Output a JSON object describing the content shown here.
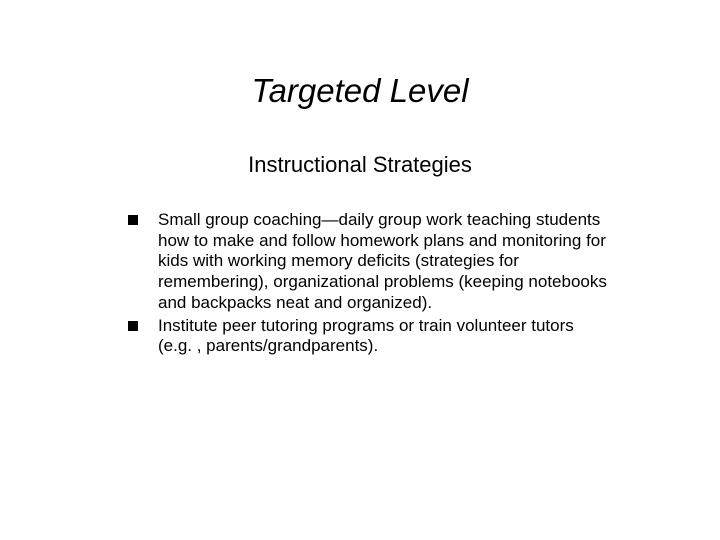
{
  "slide": {
    "title": "Targeted Level",
    "subtitle": "Instructional Strategies",
    "bullets": [
      "Small group coaching—daily group work teaching students how to make and follow homework plans and monitoring for kids with working memory deficits (strategies for remembering), organizational problems (keeping notebooks and backpacks neat and organized).",
      "Institute peer tutoring programs or train volunteer tutors (e.g. , parents/grandparents)."
    ]
  },
  "style": {
    "background_color": "#ffffff",
    "text_color": "#000000",
    "title_fontsize": 33,
    "title_style": "italic",
    "subtitle_fontsize": 22,
    "body_fontsize": 17,
    "bullet_marker": "square",
    "bullet_color": "#000000",
    "font_family": "Arial"
  }
}
